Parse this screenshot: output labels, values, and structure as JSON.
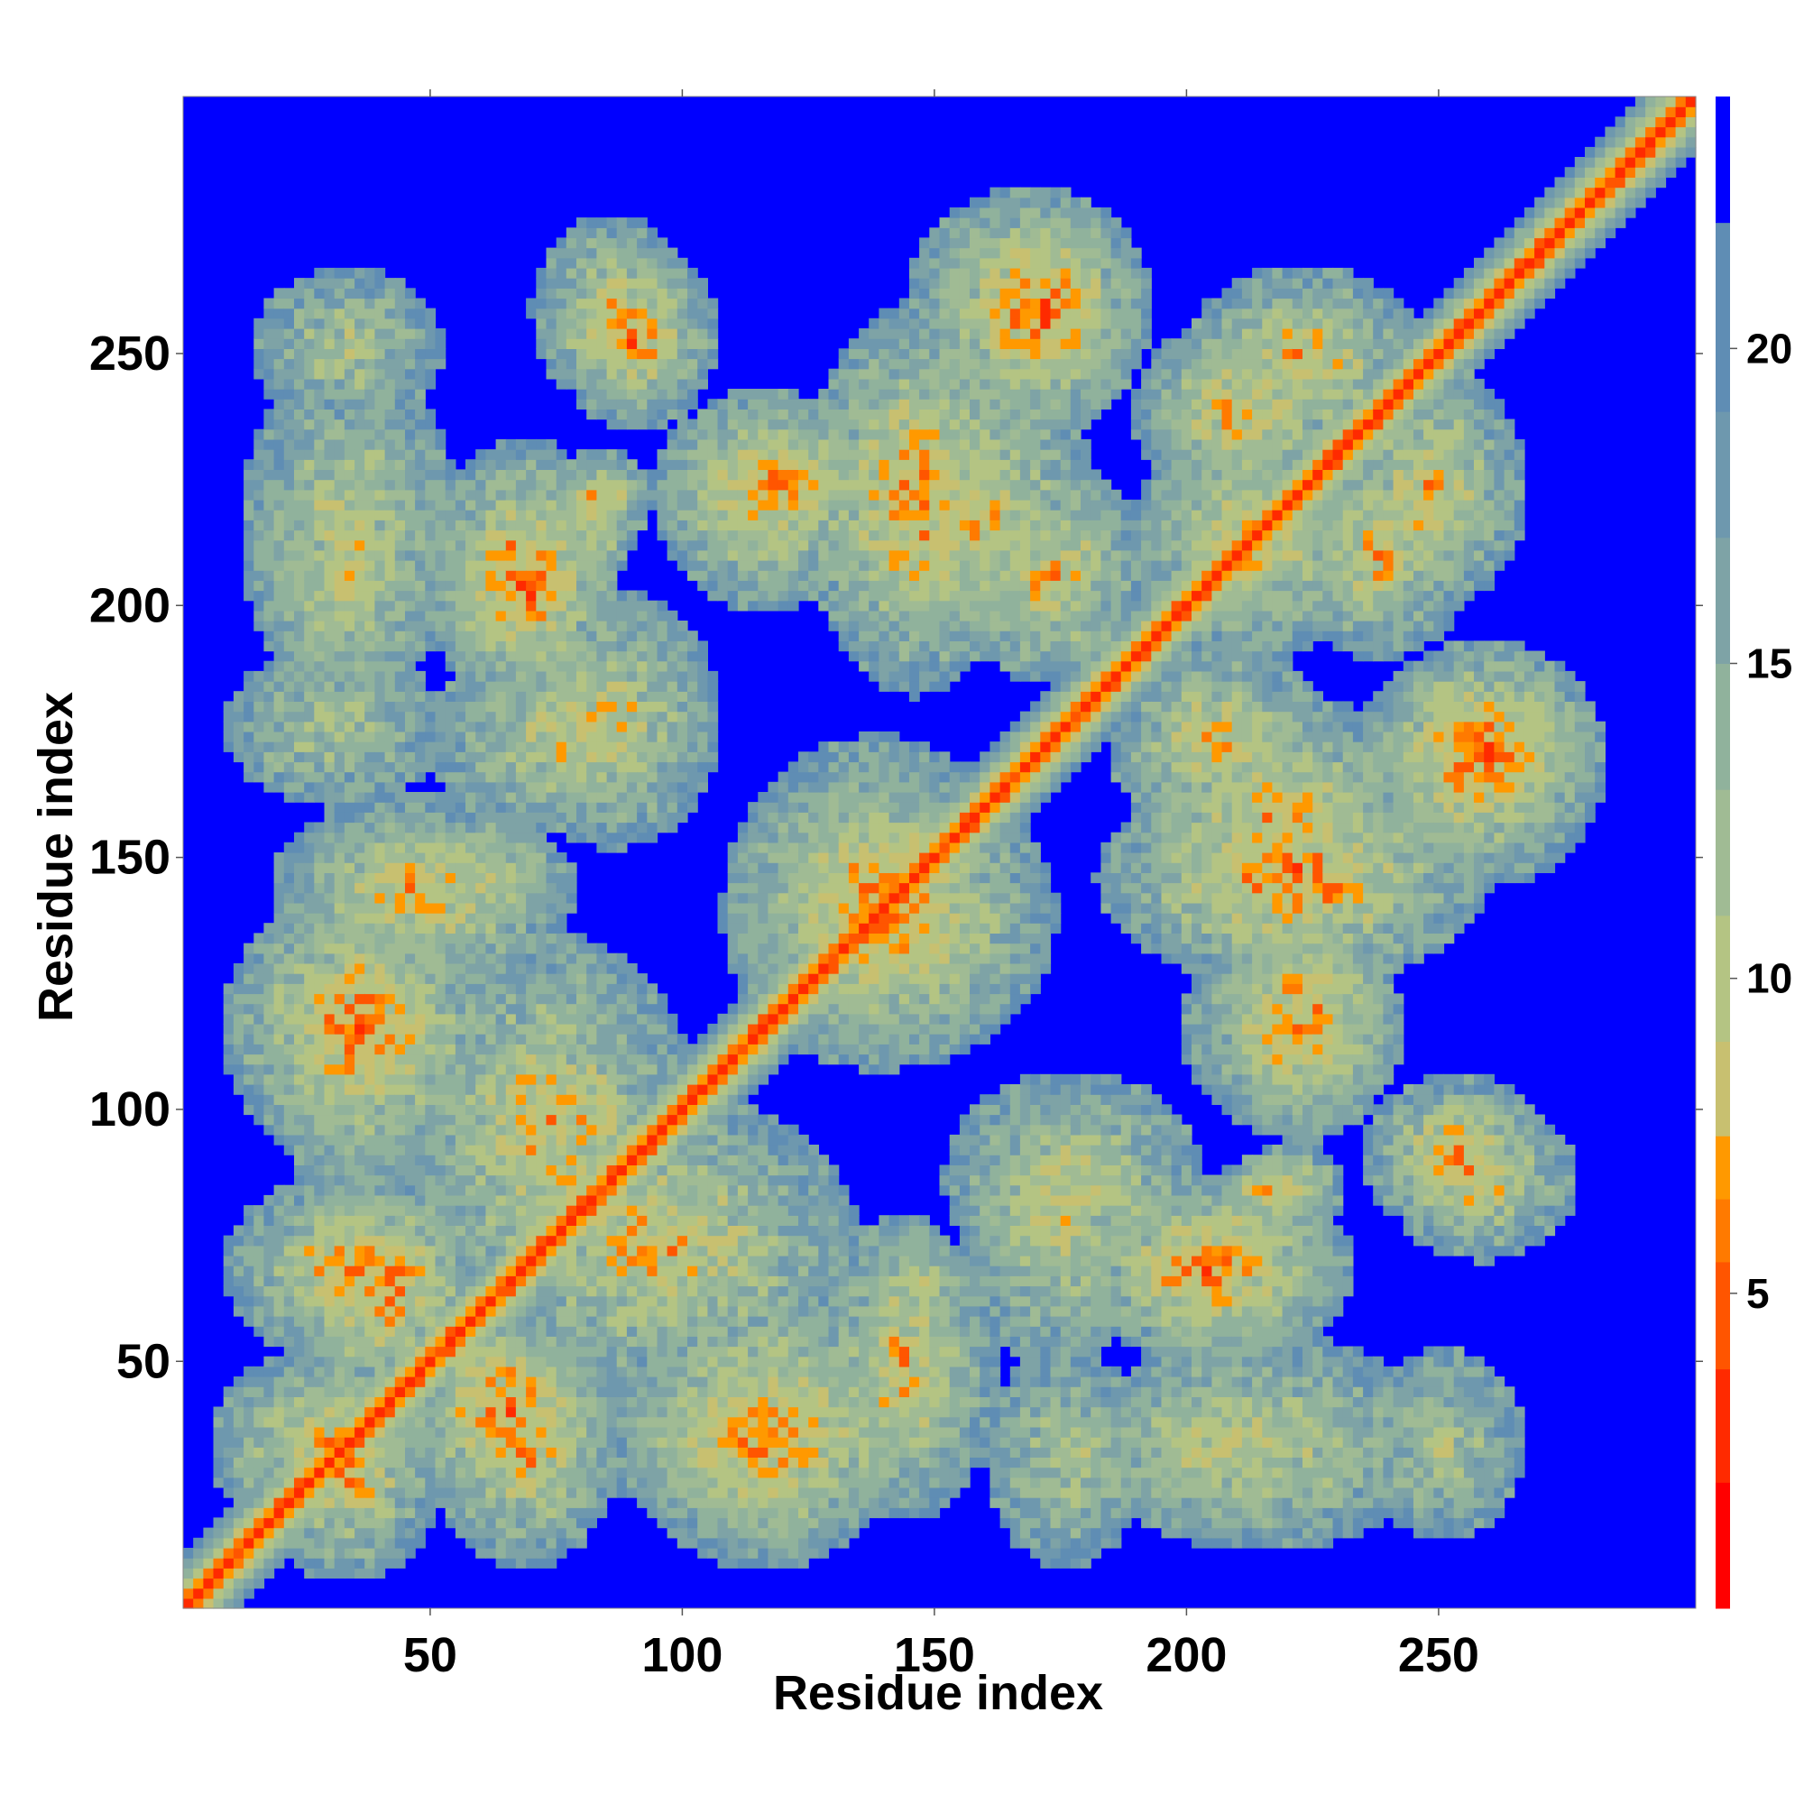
{
  "chart_data": {
    "type": "heatmap",
    "xlabel": "Residue index",
    "ylabel": "Residue index",
    "x_range": [
      1,
      301
    ],
    "y_range": [
      1,
      301
    ],
    "x_ticks": [
      50,
      100,
      150,
      200,
      250
    ],
    "y_ticks": [
      50,
      100,
      150,
      200,
      250
    ],
    "colorbar": {
      "range": [
        0,
        24
      ],
      "ticks": [
        5,
        10,
        15,
        20
      ],
      "levels": [
        {
          "from": 0,
          "to": 2,
          "color": "#ff0000"
        },
        {
          "from": 2,
          "to": 3.8,
          "color": "#ff2a00"
        },
        {
          "from": 3.8,
          "to": 5.5,
          "color": "#ff5500"
        },
        {
          "from": 5.5,
          "to": 6.5,
          "color": "#ff7a00"
        },
        {
          "from": 6.5,
          "to": 7.5,
          "color": "#ff9900"
        },
        {
          "from": 7.5,
          "to": 9,
          "color": "#c8c070"
        },
        {
          "from": 9,
          "to": 11,
          "color": "#b4c483"
        },
        {
          "from": 11,
          "to": 13,
          "color": "#a0bb94"
        },
        {
          "from": 13,
          "to": 15,
          "color": "#90b29c"
        },
        {
          "from": 15,
          "to": 17,
          "color": "#7ea3a6"
        },
        {
          "from": 17,
          "to": 19,
          "color": "#6e98ae"
        },
        {
          "from": 19,
          "to": 22,
          "color": "#5f8db4"
        },
        {
          "from": 22,
          "to": 24,
          "color": "#0000ff"
        }
      ]
    },
    "background_color": "#0000ff",
    "contact_regions": [
      {
        "x": [
          12,
          42
        ],
        "y": [
          20,
          45
        ],
        "intensity": 0.7
      },
      {
        "x": [
          48,
          80
        ],
        "y": [
          25,
          55
        ],
        "intensity": 0.8
      },
      {
        "x": [
          90,
          140
        ],
        "y": [
          20,
          48
        ],
        "intensity": 0.75
      },
      {
        "x": [
          140,
          152
        ],
        "y": [
          30,
          60
        ],
        "intensity": 0.6
      },
      {
        "x": [
          165,
          185
        ],
        "y": [
          15,
          45
        ],
        "intensity": 0.5
      },
      {
        "x": [
          188,
          240
        ],
        "y": [
          18,
          48
        ],
        "intensity": 0.55
      },
      {
        "x": [
          15,
          50
        ],
        "y": [
          55,
          80
        ],
        "intensity": 0.75
      },
      {
        "x": [
          65,
          125
        ],
        "y": [
          50,
          95
        ],
        "intensity": 0.7
      },
      {
        "x": [
          140,
          152
        ],
        "y": [
          55,
          70
        ],
        "intensity": 0.5
      },
      {
        "x": [
          158,
          195
        ],
        "y": [
          70,
          100
        ],
        "intensity": 0.6
      },
      {
        "x": [
          185,
          225
        ],
        "y": [
          55,
          80
        ],
        "intensity": 0.8
      },
      {
        "x": [
          215,
          225
        ],
        "y": [
          78,
          88
        ],
        "intensity": 0.7
      },
      {
        "x": [
          245,
          270
        ],
        "y": [
          75,
          95
        ],
        "intensity": 0.65
      },
      {
        "x": [
          15,
          55
        ],
        "y": [
          95,
          135
        ],
        "intensity": 0.8
      },
      {
        "x": [
          25,
          70
        ],
        "y": [
          130,
          155
        ],
        "intensity": 0.7
      },
      {
        "x": [
          115,
          165
        ],
        "y": [
          115,
          160
        ],
        "intensity": 0.75
      },
      {
        "x": [
          205,
          235
        ],
        "y": [
          100,
          130
        ],
        "intensity": 0.7
      },
      {
        "x": [
          190,
          250
        ],
        "y": [
          130,
          160
        ],
        "intensity": 0.8
      },
      {
        "x": [
          240,
          275
        ],
        "y": [
          150,
          185
        ],
        "intensity": 0.75
      },
      {
        "x": [
          190,
          220
        ],
        "y": [
          160,
          185
        ],
        "intensity": 0.7
      },
      {
        "x": [
          55,
          95
        ],
        "y": [
          160,
          185
        ],
        "intensity": 0.6
      },
      {
        "x": [
          20,
          45
        ],
        "y": [
          185,
          225
        ],
        "intensity": 0.55
      },
      {
        "x": [
          55,
          80
        ],
        "y": [
          185,
          220
        ],
        "intensity": 0.8
      },
      {
        "x": [
          80,
          85
        ],
        "y": [
          210,
          220
        ],
        "intensity": 0.7
      },
      {
        "x": [
          100,
          135
        ],
        "y": [
          210,
          235
        ],
        "intensity": 0.75
      },
      {
        "x": [
          140,
          175
        ],
        "y": [
          195,
          240
        ],
        "intensity": 0.7
      },
      {
        "x": [
          155,
          185
        ],
        "y": [
          240,
          275
        ],
        "intensity": 0.85
      },
      {
        "x": [
          80,
          100
        ],
        "y": [
          240,
          265
        ],
        "intensity": 0.8
      },
      {
        "x": [
          20,
          45
        ],
        "y": [
          240,
          260
        ],
        "intensity": 0.5
      },
      {
        "x": [
          205,
          240
        ],
        "y": [
          235,
          260
        ],
        "intensity": 0.7
      },
      {
        "x": [
          225,
          250
        ],
        "y": [
          195,
          225
        ],
        "intensity": 0.7
      },
      {
        "x": [
          195,
          230
        ],
        "y": [
          195,
          225
        ],
        "intensity": 0.6
      }
    ]
  }
}
